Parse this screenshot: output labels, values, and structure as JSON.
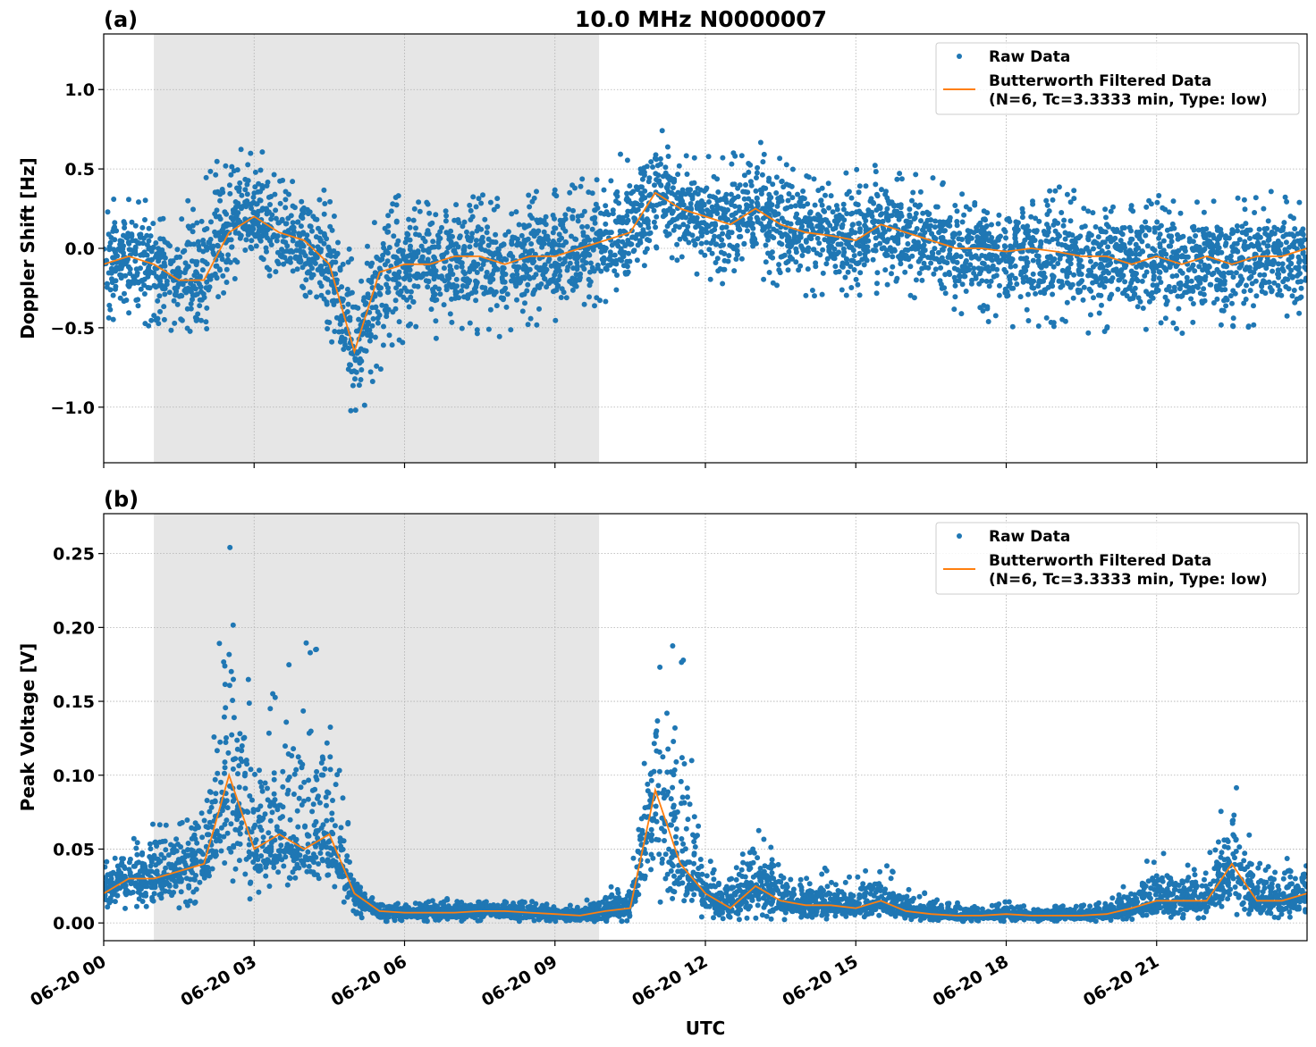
{
  "title": "10.0 MHz N0000007",
  "xlabel": "UTC",
  "x_tick_labels": [
    "06-20 00",
    "06-20 03",
    "06-20 06",
    "06-20 09",
    "06-20 12",
    "06-20 15",
    "06-20 18",
    "06-20 21"
  ],
  "legend": {
    "raw": "Raw Data",
    "filtered_line1": "Butterworth Filtered Data",
    "filtered_line2": "(N=6, Tc=3.3333 min, Type: low)"
  },
  "colors": {
    "raw": "#1f77b4",
    "filtered": "#ff7f0e",
    "shade": "#e6e6e6"
  },
  "chart_data": [
    {
      "type": "scatter+line",
      "panel_label": "(a)",
      "ylabel": "Doppler Shift [Hz]",
      "xlim_hours": [
        0,
        24
      ],
      "ylim": [
        -1.35,
        1.35
      ],
      "y_ticks": [
        -1.0,
        -0.5,
        0.0,
        0.5,
        1.0
      ],
      "y_tick_labels": [
        "−1.0",
        "−0.5",
        "0.0",
        "0.5",
        "1.0"
      ],
      "grid": true,
      "legend_position": "top-right",
      "shaded_interval_hours": [
        1.0,
        9.88
      ],
      "x_hours": [
        0,
        0.5,
        1,
        1.5,
        2,
        2.5,
        3,
        3.5,
        4,
        4.5,
        5,
        5.5,
        6,
        6.5,
        7,
        7.5,
        8,
        8.5,
        9,
        9.5,
        10,
        10.5,
        11,
        11.5,
        12,
        12.5,
        13,
        13.5,
        14,
        14.5,
        15,
        15.5,
        16,
        16.5,
        17,
        17.5,
        18,
        18.5,
        19,
        19.5,
        20,
        20.5,
        21,
        21.5,
        22,
        22.5,
        23,
        23.5,
        24
      ],
      "filtered": [
        -0.1,
        -0.05,
        -0.1,
        -0.2,
        -0.2,
        0.1,
        0.2,
        0.1,
        0.05,
        -0.1,
        -0.65,
        -0.15,
        -0.1,
        -0.1,
        -0.05,
        -0.05,
        -0.1,
        -0.05,
        -0.05,
        0.0,
        0.05,
        0.1,
        0.35,
        0.25,
        0.2,
        0.15,
        0.25,
        0.15,
        0.1,
        0.08,
        0.05,
        0.15,
        0.1,
        0.05,
        0.0,
        0.0,
        -0.02,
        0.0,
        -0.02,
        -0.05,
        -0.05,
        -0.1,
        -0.05,
        -0.1,
        -0.05,
        -0.1,
        -0.05,
        -0.05,
        0.0
      ],
      "raw_high": [
        0.3,
        0.35,
        0.3,
        0.2,
        0.5,
        0.6,
        0.7,
        0.5,
        0.45,
        0.35,
        0.0,
        0.3,
        0.35,
        0.3,
        0.35,
        0.35,
        0.3,
        0.4,
        0.4,
        0.45,
        0.45,
        0.7,
        0.8,
        0.6,
        0.6,
        0.6,
        0.8,
        0.6,
        0.5,
        0.45,
        0.5,
        0.55,
        0.5,
        0.45,
        0.4,
        0.3,
        0.3,
        0.35,
        0.4,
        0.35,
        0.3,
        0.3,
        0.35,
        0.3,
        0.3,
        0.3,
        0.45,
        0.35,
        0.3
      ],
      "raw_low": [
        -0.5,
        -0.45,
        -0.5,
        -0.55,
        -0.55,
        -0.3,
        -0.2,
        -0.25,
        -0.3,
        -0.55,
        -1.15,
        -0.8,
        -0.6,
        -0.6,
        -0.5,
        -0.55,
        -0.6,
        -0.5,
        -0.5,
        -0.4,
        -0.35,
        -0.3,
        0.0,
        -0.1,
        -0.2,
        -0.3,
        -0.2,
        -0.25,
        -0.3,
        -0.3,
        -0.3,
        -0.3,
        -0.35,
        -0.4,
        -0.45,
        -0.5,
        -0.5,
        -0.5,
        -0.5,
        -0.55,
        -0.55,
        -0.55,
        -0.5,
        -0.55,
        -0.5,
        -0.5,
        -0.5,
        -0.45,
        -0.45
      ]
    },
    {
      "type": "scatter+line",
      "panel_label": "(b)",
      "ylabel": "Peak Voltage [V]",
      "xlim_hours": [
        0,
        24
      ],
      "ylim": [
        -0.012,
        0.277
      ],
      "y_ticks": [
        0.0,
        0.05,
        0.1,
        0.15,
        0.2,
        0.25
      ],
      "y_tick_labels": [
        "0.00",
        "0.05",
        "0.10",
        "0.15",
        "0.20",
        "0.25"
      ],
      "grid": true,
      "legend_position": "top-right",
      "shaded_interval_hours": [
        1.0,
        9.88
      ],
      "x_hours": [
        0,
        0.5,
        1,
        1.5,
        2,
        2.5,
        3,
        3.5,
        4,
        4.5,
        5,
        5.5,
        6,
        6.5,
        7,
        7.5,
        8,
        8.5,
        9,
        9.5,
        10,
        10.5,
        11,
        11.5,
        12,
        12.5,
        13,
        13.5,
        14,
        14.5,
        15,
        15.5,
        16,
        16.5,
        17,
        17.5,
        18,
        18.5,
        19,
        19.5,
        20,
        20.5,
        21,
        21.5,
        22,
        22.5,
        23,
        23.5,
        24
      ],
      "filtered": [
        0.02,
        0.03,
        0.03,
        0.035,
        0.04,
        0.1,
        0.05,
        0.06,
        0.05,
        0.06,
        0.02,
        0.008,
        0.007,
        0.007,
        0.007,
        0.008,
        0.008,
        0.007,
        0.006,
        0.005,
        0.008,
        0.01,
        0.09,
        0.04,
        0.02,
        0.01,
        0.025,
        0.015,
        0.012,
        0.012,
        0.01,
        0.015,
        0.008,
        0.006,
        0.005,
        0.005,
        0.006,
        0.005,
        0.005,
        0.005,
        0.006,
        0.01,
        0.015,
        0.015,
        0.015,
        0.04,
        0.015,
        0.015,
        0.02
      ],
      "raw_high": [
        0.04,
        0.06,
        0.07,
        0.07,
        0.08,
        0.26,
        0.14,
        0.17,
        0.19,
        0.19,
        0.03,
        0.015,
        0.013,
        0.015,
        0.017,
        0.015,
        0.015,
        0.015,
        0.012,
        0.012,
        0.025,
        0.025,
        0.18,
        0.2,
        0.05,
        0.03,
        0.07,
        0.04,
        0.03,
        0.04,
        0.03,
        0.045,
        0.025,
        0.02,
        0.015,
        0.01,
        0.015,
        0.01,
        0.012,
        0.012,
        0.015,
        0.03,
        0.05,
        0.04,
        0.04,
        0.11,
        0.04,
        0.05,
        0.04
      ],
      "raw_low": [
        0.005,
        0.01,
        0.01,
        0.01,
        0.015,
        0.03,
        0.01,
        0.015,
        0.015,
        0.02,
        0.003,
        0.001,
        0.001,
        0.001,
        0.001,
        0.001,
        0.001,
        0.001,
        0.001,
        0.0,
        0.001,
        0.001,
        0.01,
        0.005,
        0.003,
        0.002,
        0.003,
        0.002,
        0.002,
        0.002,
        0.002,
        0.002,
        0.001,
        0.001,
        0.001,
        0.001,
        0.001,
        0.001,
        0.001,
        0.001,
        0.001,
        0.002,
        0.003,
        0.003,
        0.003,
        0.003,
        0.003,
        0.003,
        0.003
      ]
    }
  ]
}
